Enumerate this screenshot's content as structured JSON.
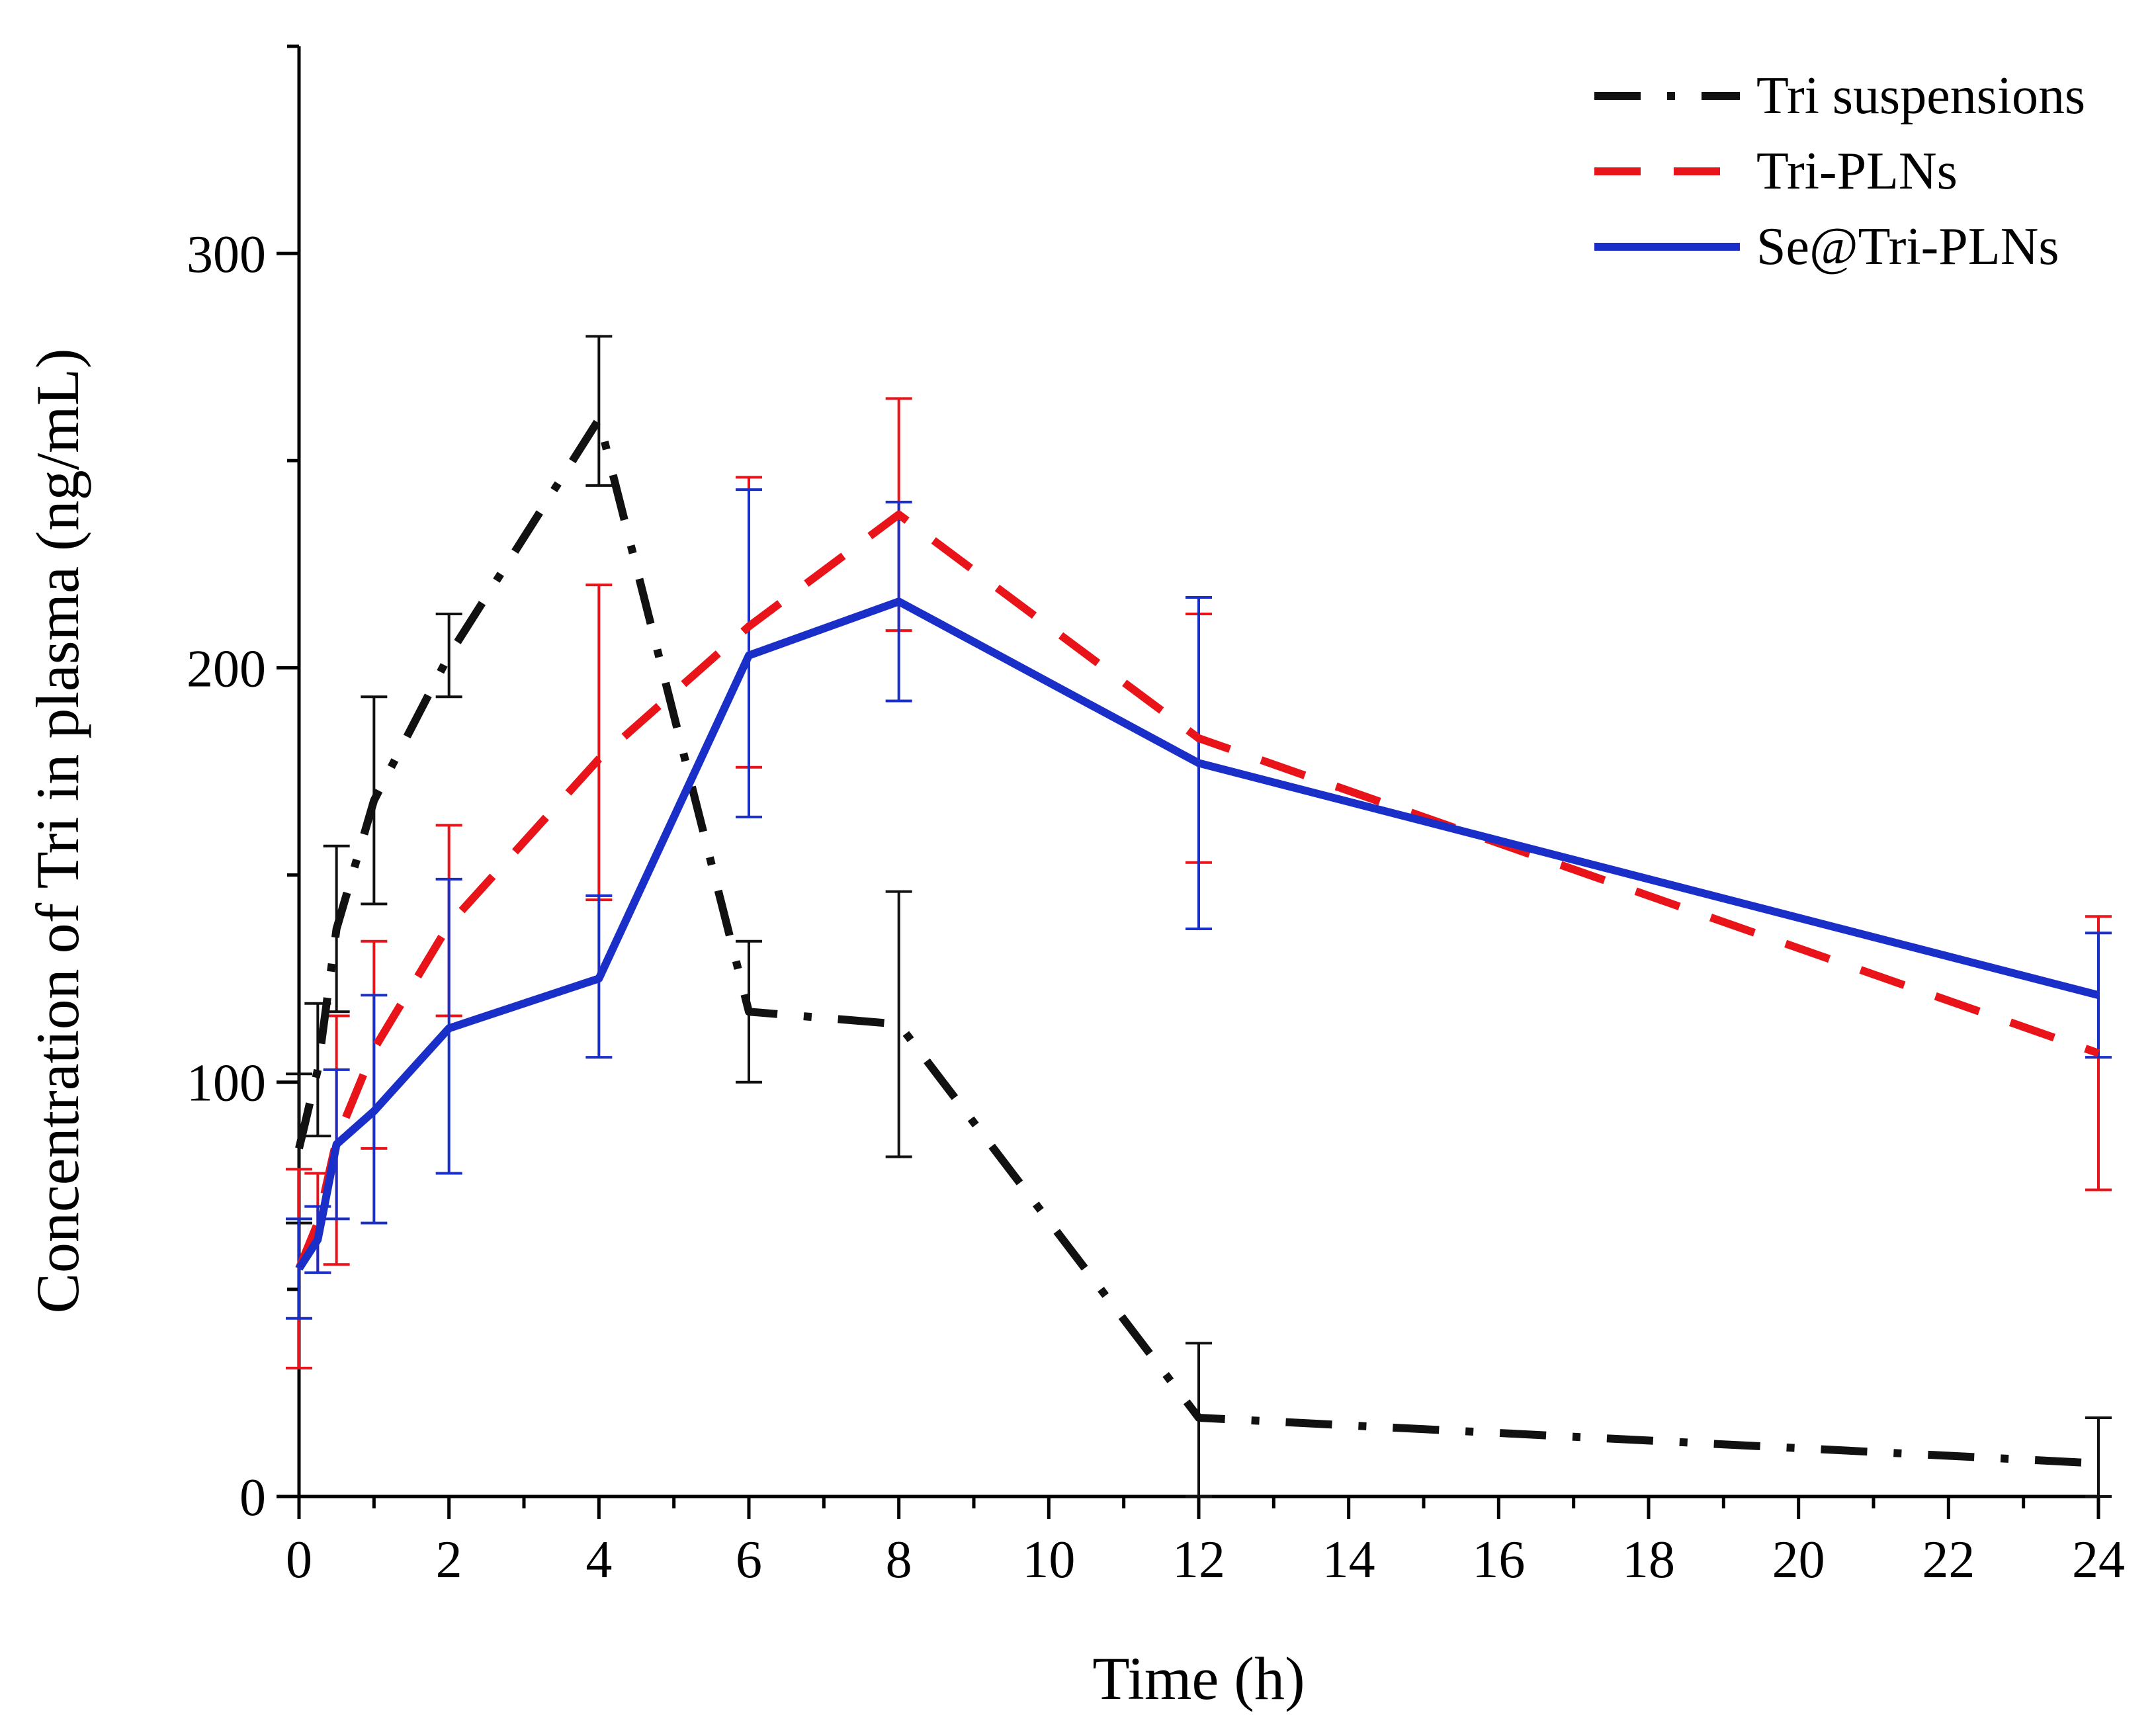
{
  "chart_data": {
    "type": "line",
    "title": "",
    "xlabel": "Time (h)",
    "ylabel": "Concentration of Tri in plasma (ng/mL)",
    "xlim": [
      0,
      24
    ],
    "ylim": [
      0,
      350
    ],
    "x_major_ticks": [
      0,
      2,
      4,
      6,
      8,
      10,
      12,
      14,
      16,
      18,
      20,
      22,
      24
    ],
    "x_minor_ticks": [
      1,
      3,
      5,
      7,
      9,
      11,
      13,
      15,
      17,
      19,
      21,
      23
    ],
    "x_tick_labels": [
      "0",
      "2",
      "4",
      "6",
      "8",
      "10",
      "12",
      "14",
      "16",
      "18",
      "20",
      "22",
      "24"
    ],
    "y_major_ticks": [
      0,
      100,
      200,
      300
    ],
    "y_minor_ticks": [
      50,
      150,
      250,
      350
    ],
    "y_tick_labels": [
      "0",
      "100",
      "200",
      "300"
    ],
    "grid": false,
    "legend_position": "top-right",
    "series": [
      {
        "name": "Tri suspensions",
        "color": "#111111",
        "style": "dash-dot",
        "x": [
          0,
          0.25,
          0.5,
          1,
          2,
          4,
          6,
          8,
          12,
          24
        ],
        "y": [
          84,
          103,
          137,
          168,
          203,
          260,
          117,
          114,
          19,
          8
        ],
        "err_upper": [
          18,
          16,
          20,
          25,
          10,
          20,
          17,
          32,
          18,
          11
        ],
        "err_lower": [
          18,
          16,
          20,
          25,
          10,
          16,
          17,
          32,
          19,
          8
        ]
      },
      {
        "name": "Tri-PLNs",
        "color": "#e8141a",
        "style": "dashed",
        "x": [
          0,
          0.25,
          0.5,
          1,
          2,
          4,
          6,
          8,
          12,
          24
        ],
        "y": [
          55,
          66,
          86,
          108,
          138,
          178,
          210,
          237,
          183,
          107
        ],
        "err_upper": [
          24,
          12,
          30,
          26,
          24,
          42,
          36,
          28,
          30,
          33
        ],
        "err_lower": [
          24,
          12,
          30,
          24,
          22,
          34,
          34,
          28,
          30,
          33
        ]
      },
      {
        "name": "Se@Tri-PLNs",
        "color": "#1a2fc8",
        "style": "solid",
        "x": [
          0,
          0.25,
          0.5,
          1,
          2,
          4,
          6,
          8,
          12,
          24
        ],
        "y": [
          55,
          62,
          85,
          93,
          113,
          125,
          203,
          216,
          177,
          121
        ],
        "err_upper": [
          12,
          8,
          18,
          28,
          36,
          20,
          40,
          24,
          40,
          15
        ],
        "err_lower": [
          12,
          8,
          18,
          27,
          35,
          19,
          39,
          24,
          40,
          15
        ]
      }
    ]
  }
}
